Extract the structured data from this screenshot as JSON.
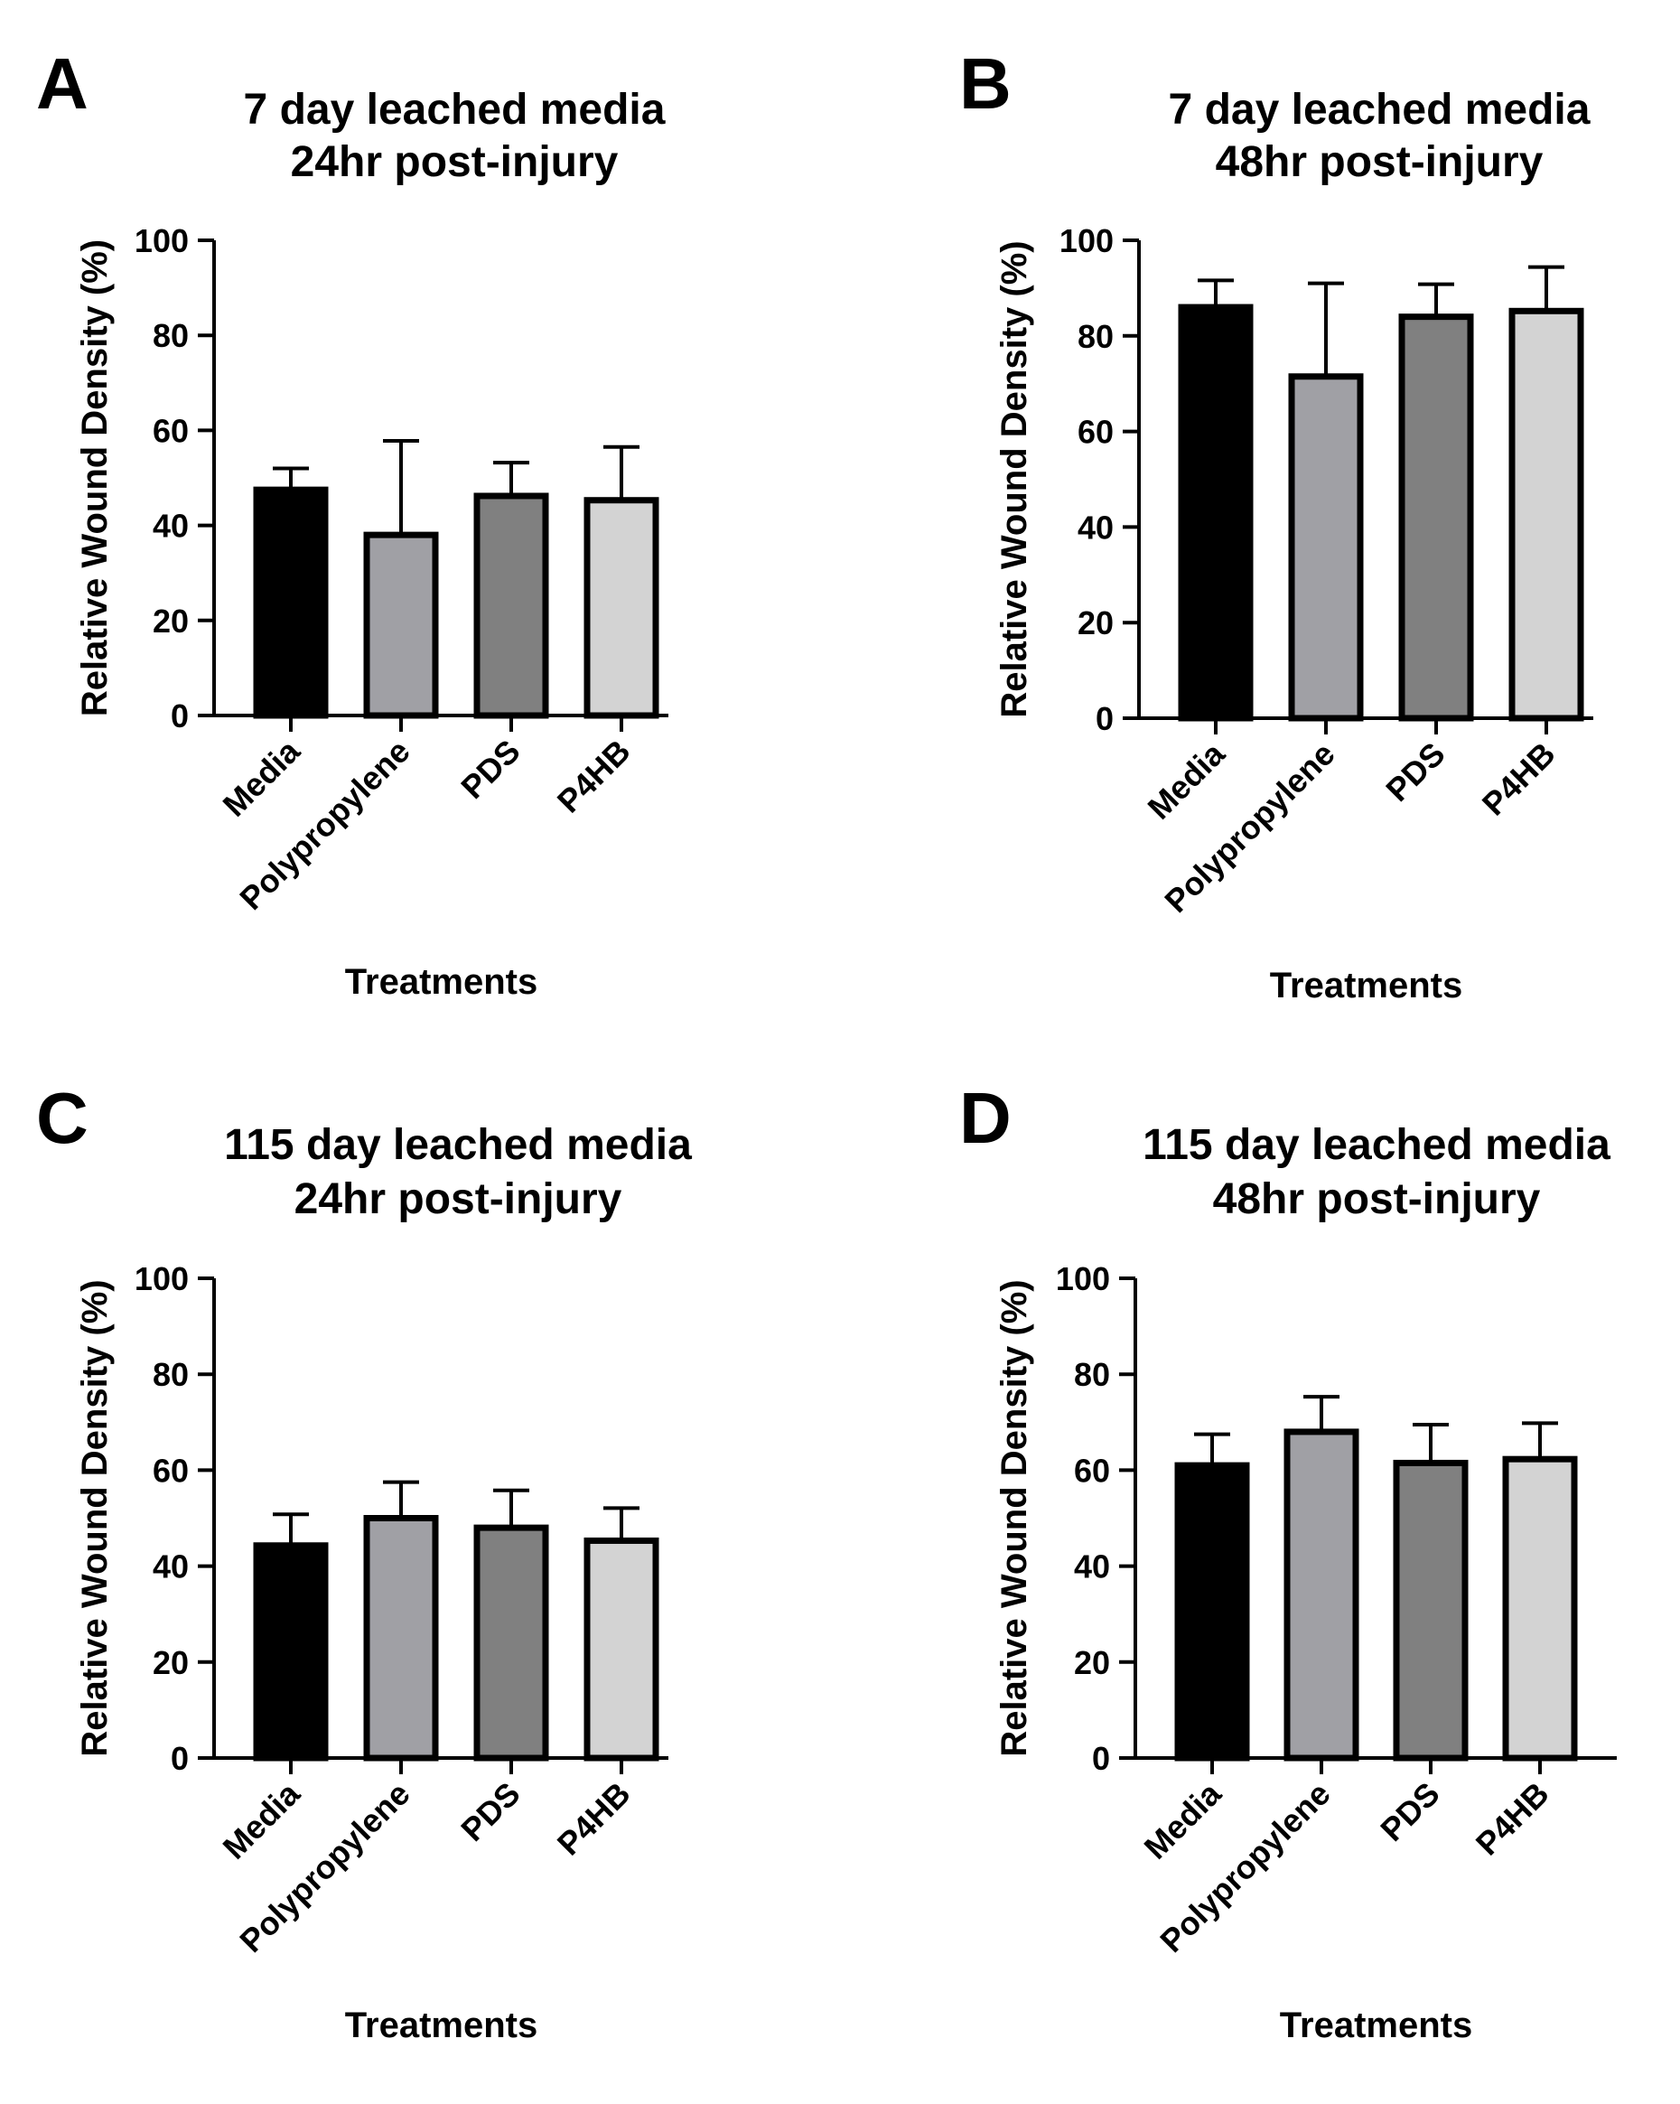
{
  "chart_data": [
    {
      "type": "bar",
      "panel": "A",
      "title": [
        "7 day leached media",
        "24hr post-injury"
      ],
      "xlabel": "Treatments",
      "ylabel": "Relative Wound  Density (%)",
      "ylim": [
        0,
        100
      ],
      "yticks": [
        "0",
        "20",
        "40",
        "60",
        "80",
        "100"
      ],
      "categories": [
        "Media",
        "Polypropylene",
        "PDS",
        "P4HB"
      ],
      "values": [
        47.5,
        38.0,
        46.2,
        45.3
      ],
      "errors": [
        4.5,
        19.8,
        7.0,
        11.2
      ],
      "colors": [
        "#000000",
        "#a0a0a5",
        "#808080",
        "#d3d3d3"
      ],
      "grid": false,
      "legend": false
    },
    {
      "type": "bar",
      "panel": "B",
      "title": [
        "7 day leached media",
        "48hr post-injury"
      ],
      "xlabel": "Treatments",
      "ylabel": "Relative Wound  Density (%)",
      "ylim": [
        0,
        100
      ],
      "yticks": [
        "0",
        "20",
        "40",
        "60",
        "80",
        "100"
      ],
      "categories": [
        "Media",
        "Polypropylene",
        "PDS",
        "P4HB"
      ],
      "values": [
        86.0,
        71.5,
        84.0,
        85.2
      ],
      "errors": [
        5.6,
        19.5,
        6.8,
        9.2
      ],
      "colors": [
        "#000000",
        "#a0a0a5",
        "#808080",
        "#d3d3d3"
      ],
      "grid": false,
      "legend": false
    },
    {
      "type": "bar",
      "panel": "C",
      "title": [
        "115 day leached media",
        "24hr post-injury"
      ],
      "xlabel": "Treatments",
      "ylabel": "Relative Wound  Density (%)",
      "ylim": [
        0,
        100
      ],
      "yticks": [
        "0",
        "20",
        "40",
        "60",
        "80",
        "100"
      ],
      "categories": [
        "Media",
        "Polypropylene",
        "PDS",
        "P4HB"
      ],
      "values": [
        44.3,
        50.0,
        48.0,
        45.3
      ],
      "errors": [
        6.5,
        7.5,
        7.8,
        6.8
      ],
      "colors": [
        "#000000",
        "#a0a0a5",
        "#808080",
        "#d3d3d3"
      ],
      "grid": false,
      "legend": false
    },
    {
      "type": "bar",
      "panel": "D",
      "title": [
        "115 day leached media",
        "48hr post-injury"
      ],
      "xlabel": "Treatments",
      "ylabel": "Relative Wound  Density (%)",
      "ylim": [
        0,
        100
      ],
      "yticks": [
        "0",
        "20",
        "40",
        "60",
        "80",
        "100"
      ],
      "categories": [
        "Media",
        "Polypropylene",
        "PDS",
        "P4HB"
      ],
      "values": [
        61.0,
        68.0,
        61.5,
        62.3
      ],
      "errors": [
        6.5,
        7.3,
        8.0,
        7.5
      ],
      "colors": [
        "#000000",
        "#a0a0a5",
        "#808080",
        "#d3d3d3"
      ],
      "grid": false,
      "legend": false
    }
  ]
}
